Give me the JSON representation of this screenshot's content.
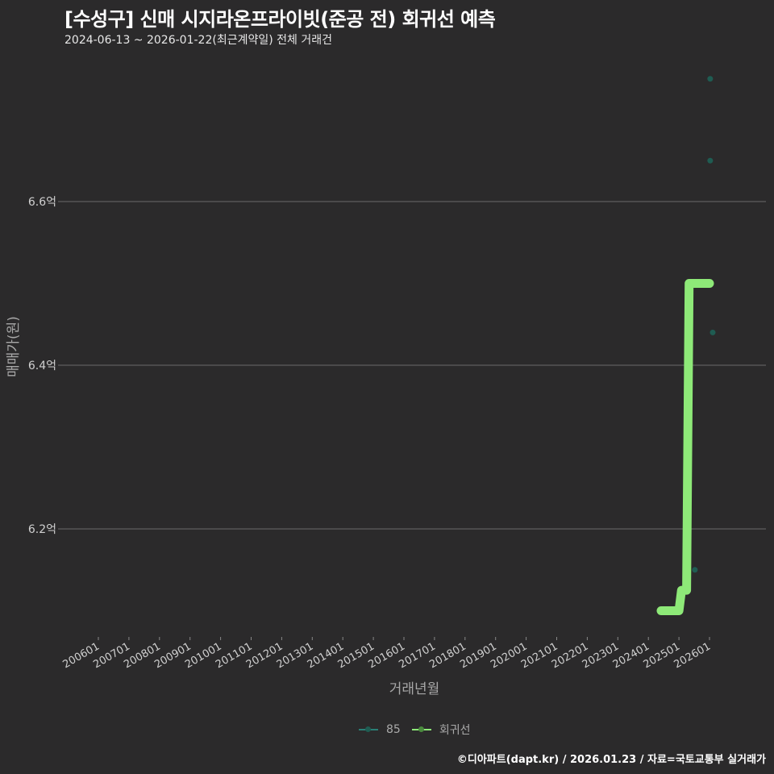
{
  "header": {
    "title": "[수성구] 신매 시지라온프라이빗(준공 전) 회귀선 예측",
    "subtitle": "2024-06-13 ~ 2026-01-22(최근계약일) 전체 거래건"
  },
  "footer": {
    "credit": "©디아파트(dapt.kr) / 2026.01.23 / 자료=국토교통부 실거래가"
  },
  "legend": [
    {
      "label": "85",
      "color": "#2a7f76"
    },
    {
      "label": "회귀선",
      "color": "#8ee978"
    }
  ],
  "colors": {
    "background": "#2b2a2b",
    "grid": "#6b6b6b",
    "points": "#1f5c52",
    "regression": "#8ee978"
  },
  "chart_data": {
    "type": "scatter",
    "title": "[수성구] 신매 시지라온프라이빗(준공 전) 회귀선 예측",
    "subtitle": "2024-06-13 ~ 2026-01-22(최근계약일) 전체 거래건",
    "xlabel": "거래년월",
    "ylabel": "매매가(원)",
    "x_ticks": [
      "200601",
      "200701",
      "200801",
      "200901",
      "201001",
      "201101",
      "201201",
      "201301",
      "201401",
      "201501",
      "201601",
      "201701",
      "201801",
      "201901",
      "202001",
      "202101",
      "202201",
      "202301",
      "202401",
      "202501",
      "202601"
    ],
    "y_ticks": [
      "6.2억",
      "6.4억",
      "6.6억"
    ],
    "y_tick_values": [
      6.2,
      6.4,
      6.6
    ],
    "ylim": [
      6.08,
      6.77
    ],
    "grid": "horizontal",
    "legend_position": "bottom",
    "series": [
      {
        "name": "85",
        "type": "scatter",
        "points": [
          {
            "x": "2025-06",
            "y": 6.15
          },
          {
            "x": "2025-12",
            "y": 6.65
          },
          {
            "x": "2025-12",
            "y": 6.75
          },
          {
            "x": "2026-01",
            "y": 6.44
          }
        ]
      },
      {
        "name": "회귀선",
        "type": "line",
        "points": [
          {
            "x": "2024-06",
            "y": 6.1
          },
          {
            "x": "2025-01",
            "y": 6.1
          },
          {
            "x": "2025-02",
            "y": 6.125
          },
          {
            "x": "2025-04",
            "y": 6.125
          },
          {
            "x": "2025-05",
            "y": 6.5
          },
          {
            "x": "2026-01",
            "y": 6.5
          }
        ]
      }
    ]
  }
}
